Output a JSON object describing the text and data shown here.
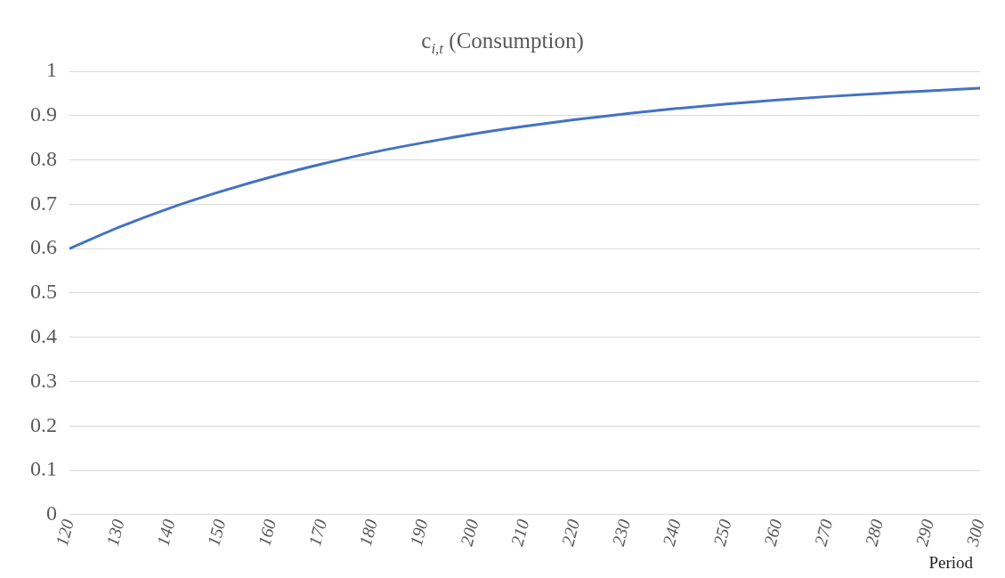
{
  "chart_data": {
    "type": "line",
    "title": "c$_{i,t}$ (Consumption)",
    "xlabel": "Period",
    "x": [
      120,
      130,
      140,
      150,
      160,
      170,
      180,
      190,
      200,
      210,
      220,
      230,
      240,
      250,
      260,
      270,
      280,
      290,
      300
    ],
    "series": [
      {
        "color": "#4472c4",
        "values": [
          0.6,
          0.649,
          0.692,
          0.729,
          0.762,
          0.791,
          0.817,
          0.839,
          0.859,
          0.876,
          0.891,
          0.904,
          0.916,
          0.926,
          0.935,
          0.943,
          0.95,
          0.956,
          0.962
        ]
      }
    ],
    "xlim": [
      120,
      300
    ],
    "xticks": [
      120,
      130,
      140,
      150,
      160,
      170,
      180,
      190,
      200,
      210,
      220,
      230,
      240,
      250,
      260,
      270,
      280,
      290,
      300
    ],
    "ylim": [
      0,
      1
    ],
    "yticks": [
      0,
      0.1,
      0.2,
      0.3,
      0.4,
      0.5,
      0.6,
      0.7,
      0.8,
      0.9,
      1
    ],
    "grid": "y",
    "legend": false,
    "marker": "none",
    "line_style": "solid"
  }
}
